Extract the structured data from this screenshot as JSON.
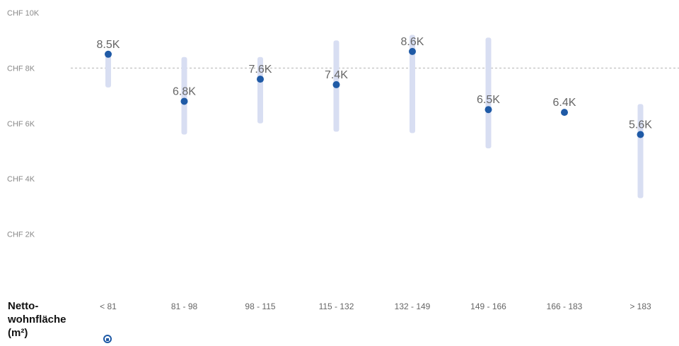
{
  "colors": {
    "point": "#1f5aa6",
    "range": "#d8def2",
    "reference_line": "#b3b3b3",
    "text": "#666666"
  },
  "chart_data": {
    "type": "scatter",
    "categories": [
      "< 81",
      "81 - 98",
      "98 - 115",
      "115 - 132",
      "132 - 149",
      "149 - 166",
      "166 - 183",
      "> 183"
    ],
    "values": [
      8500,
      6800,
      7600,
      7400,
      8600,
      6500,
      6400,
      5600
    ],
    "value_labels": [
      "8.5K",
      "6.8K",
      "7.6K",
      "7.4K",
      "8.6K",
      "6.5K",
      "6.4K",
      "5.6K"
    ],
    "ranges": [
      [
        7300,
        8600
      ],
      [
        5600,
        8400
      ],
      [
        6000,
        8400
      ],
      [
        5700,
        9000
      ],
      [
        5650,
        9200
      ],
      [
        5100,
        9100
      ],
      [
        6400,
        6400
      ],
      [
        3300,
        6700
      ]
    ],
    "reference_value": 8000,
    "ylim": [
      0,
      10000
    ],
    "y_ticks": [
      {
        "value": 10000,
        "label": "CHF 10K"
      },
      {
        "value": 8000,
        "label": "CHF 8K"
      },
      {
        "value": 6000,
        "label": "CHF 6K"
      },
      {
        "value": 4000,
        "label": "CHF 4K"
      },
      {
        "value": 2000,
        "label": "CHF 2K"
      }
    ],
    "xlabel": "Netto-\nwohnfläche\n(m²)",
    "ylabel": "",
    "title": "",
    "grid": false,
    "legend": "none"
  },
  "icons": {
    "axis_title_icon": "home-icon"
  }
}
